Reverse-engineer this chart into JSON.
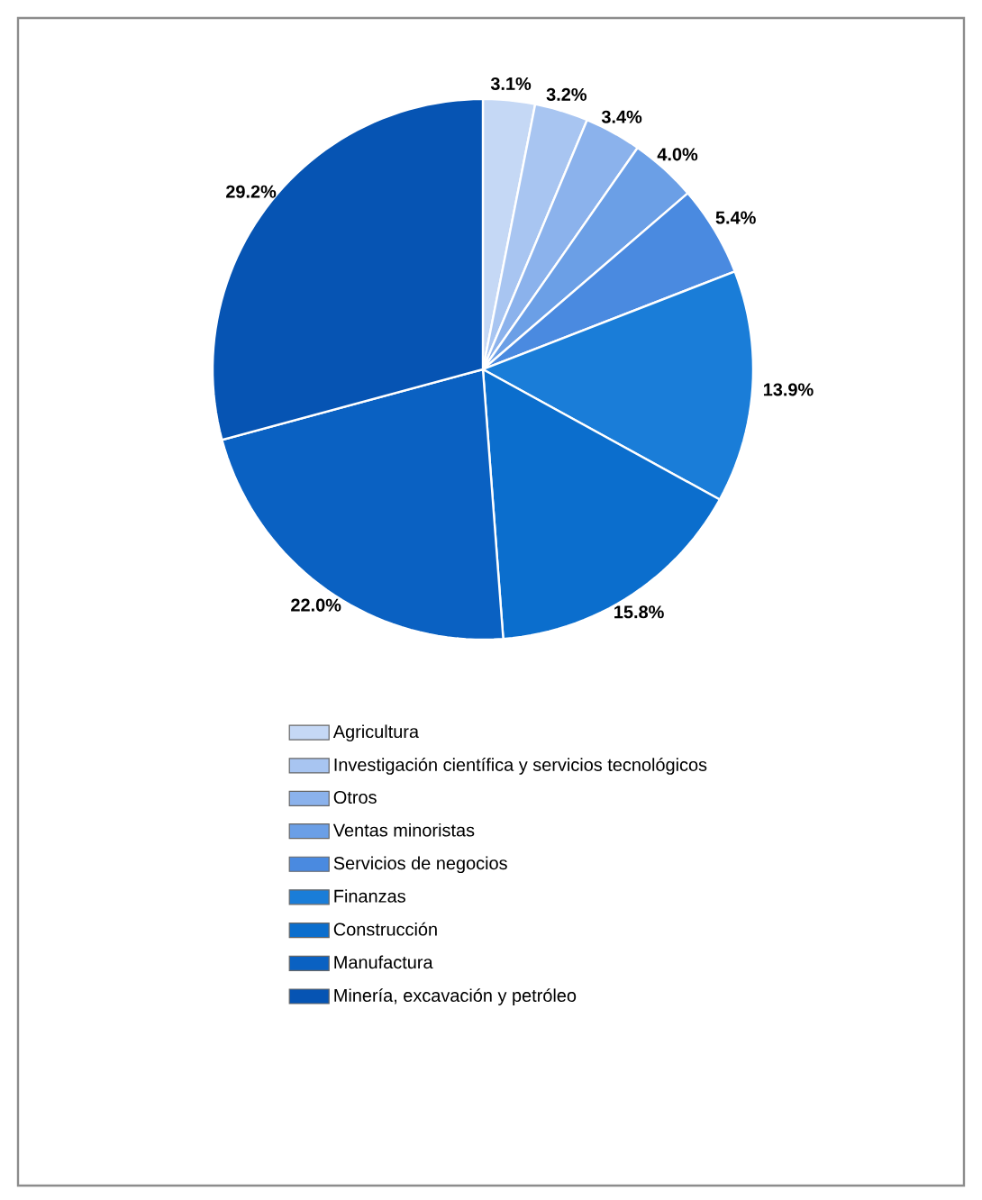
{
  "chart_data": {
    "type": "pie",
    "categories": [
      "Agricultura",
      "Investigación científica y servicios tecnológicos",
      "Otros",
      "Ventas minoristas",
      "Servicios de negocios",
      "Finanzas",
      "Construcción",
      "Manufactura",
      "Minería, excavación y petróleo"
    ],
    "values": [
      3.1,
      3.2,
      3.4,
      4.0,
      5.4,
      13.9,
      15.8,
      22.0,
      29.2
    ],
    "value_labels": [
      "3.1%",
      "3.2%",
      "3.4%",
      "4.0%",
      "5.4%",
      "13.9%",
      "15.8%",
      "22.0%",
      "29.2%"
    ],
    "colors": [
      "#c5d8f5",
      "#a8c5f1",
      "#8bb2ec",
      "#6b9fe6",
      "#4a8ae0",
      "#1a7dd8",
      "#0b6ecd",
      "#0a61c2",
      "#0654b3"
    ],
    "legend": "bottom"
  }
}
